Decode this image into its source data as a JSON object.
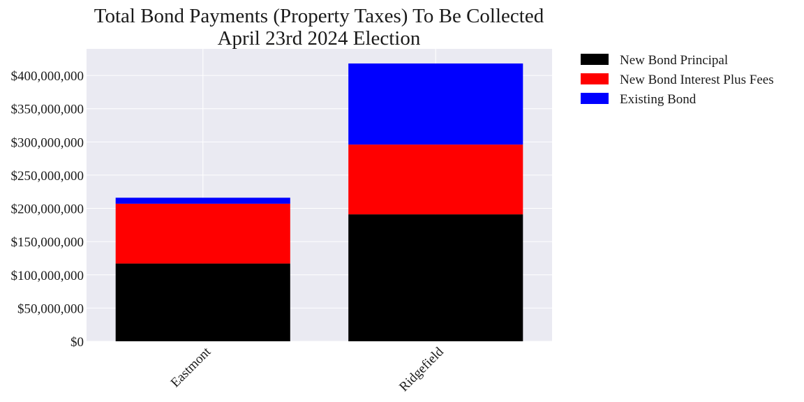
{
  "chart_data": {
    "type": "bar",
    "stacked": true,
    "title_lines": [
      "Total Bond Payments (Property Taxes) To Be Collected",
      "April 23rd 2024 Election"
    ],
    "categories": [
      "Eastmont",
      "Ridgefield"
    ],
    "series": [
      {
        "name": "New Bond Principal",
        "color": "#000000",
        "values": [
          117000000,
          191000000
        ]
      },
      {
        "name": "New Bond Interest Plus Fees",
        "color": "#ff0000",
        "values": [
          90000000,
          105000000
        ]
      },
      {
        "name": "Existing Bond",
        "color": "#0000ff",
        "values": [
          9000000,
          122000000
        ]
      }
    ],
    "ylim": [
      0,
      440000000
    ],
    "yticks": [
      0,
      50000000,
      100000000,
      150000000,
      200000000,
      250000000,
      300000000,
      350000000,
      400000000
    ],
    "ytick_labels": [
      "$0",
      "$50,000,000",
      "$100,000,000",
      "$150,000,000",
      "$200,000,000",
      "$250,000,000",
      "$300,000,000",
      "$350,000,000",
      "$400,000,000"
    ],
    "grid": true,
    "legend_position": "outside-right",
    "plot_background": "#eaeaf2",
    "grid_color": "#ffffff"
  }
}
